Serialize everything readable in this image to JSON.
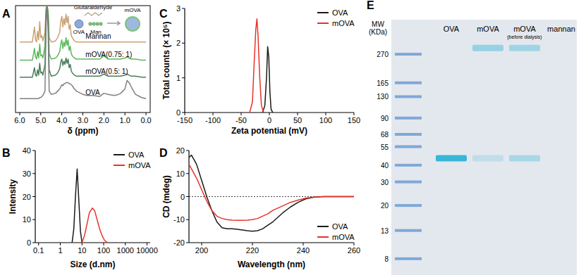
{
  "chart_data": [
    {
      "panel": "A",
      "type": "line",
      "xlabel": "δ (ppm)",
      "xlim": [
        6.2,
        -0.2
      ],
      "ylim": [
        0,
        100
      ],
      "xticks": [
        {
          "value": 6,
          "label": "6.0"
        },
        {
          "value": 5,
          "label": "5.0"
        },
        {
          "value": 4,
          "label": "4.0"
        },
        {
          "value": 3,
          "label": "3.0"
        },
        {
          "value": 2,
          "label": "2.0"
        },
        {
          "value": 1,
          "label": "1.0"
        },
        {
          "value": 0,
          "label": "0.0"
        }
      ],
      "tick_labels": "x",
      "legend": "inline",
      "inset_labels": [
        "Glutaraldehyde",
        "OVA",
        "Man",
        "mOVA"
      ],
      "x": [
        6.0,
        5.6,
        5.4,
        5.3,
        5.25,
        5.2,
        5.15,
        5.1,
        5.05,
        5.0,
        4.95,
        4.9,
        4.8,
        4.75,
        4.7,
        4.65,
        4.6,
        4.5,
        4.3,
        4.2,
        4.1,
        4.05,
        4.0,
        3.95,
        3.9,
        3.85,
        3.8,
        3.75,
        3.7,
        3.65,
        3.6,
        3.55,
        3.5,
        3.4,
        3.3,
        3.2,
        3.0,
        2.8,
        2.5,
        2.2,
        2.0,
        1.8,
        1.5,
        1.3,
        1.2,
        1.0,
        0.9,
        0.8,
        0.7,
        0.5,
        0.2,
        0.0
      ],
      "series": [
        {
          "name": "Mannan",
          "color": "#c8a274",
          "values": [
            66,
            66,
            66,
            80,
            68,
            66,
            76,
            68,
            85,
            70,
            72,
            67,
            75,
            98,
            100,
            96,
            70,
            66,
            67,
            70,
            75,
            85,
            90,
            80,
            88,
            82,
            92,
            84,
            90,
            78,
            82,
            72,
            70,
            67,
            66,
            66,
            66,
            66,
            66,
            66,
            66,
            66,
            66,
            66,
            66,
            66,
            66,
            66,
            66,
            66,
            66,
            66
          ]
        },
        {
          "name": "mOVA(0.75: 1)",
          "color": "#5cb85c",
          "values": [
            49,
            49,
            49,
            60,
            52,
            50,
            57,
            51,
            64,
            53,
            54,
            51,
            62,
            95,
            100,
            92,
            55,
            50,
            51,
            53,
            57,
            64,
            68,
            60,
            66,
            62,
            70,
            63,
            68,
            58,
            62,
            55,
            53,
            51,
            50,
            50,
            50,
            50,
            50,
            50,
            53,
            50,
            50,
            50,
            50,
            51,
            52,
            51,
            50,
            50,
            49,
            49
          ]
        },
        {
          "name": "mOVA(0.5: 1)",
          "color": "#4a7d5a",
          "values": [
            33,
            33,
            33,
            42,
            35,
            34,
            40,
            35,
            46,
            37,
            38,
            35,
            45,
            90,
            100,
            88,
            40,
            34,
            35,
            37,
            41,
            47,
            50,
            44,
            48,
            45,
            51,
            46,
            50,
            42,
            45,
            39,
            37,
            35,
            34,
            34,
            34,
            34,
            34,
            34,
            36,
            34,
            34,
            34,
            34,
            35,
            36,
            35,
            34,
            34,
            33,
            33
          ]
        },
        {
          "name": "OVA",
          "color": "#808080",
          "values": [
            13,
            13,
            13,
            13,
            13,
            13,
            13,
            13,
            14,
            14,
            15,
            16,
            20,
            80,
            100,
            75,
            20,
            17,
            18,
            20,
            22,
            24,
            26,
            25,
            27,
            27,
            28,
            28,
            28,
            27,
            27,
            26,
            25,
            22,
            20,
            19,
            17,
            16,
            16,
            15,
            18,
            17,
            16,
            17,
            18,
            22,
            30,
            28,
            24,
            17,
            14,
            13
          ]
        }
      ]
    },
    {
      "panel": "B",
      "type": "line",
      "xlabel": "Size (d.nm)",
      "ylabel": "Intensity",
      "log": "x",
      "xlim": [
        0.07,
        14000
      ],
      "ylim": [
        0,
        40
      ],
      "xticks": [
        0.1,
        1,
        10,
        100,
        1000,
        10000
      ],
      "yticks": [
        0,
        10,
        20,
        30,
        40
      ],
      "legend": "top-right",
      "series": [
        {
          "name": "OVA",
          "color": "#1a1a1a",
          "x": [
            3.5,
            4.2,
            5,
            6,
            7,
            8.5,
            10
          ],
          "values": [
            0,
            6,
            20,
            32,
            20,
            5,
            0
          ]
        },
        {
          "name": "mOVA",
          "color": "#e8322a",
          "x": [
            10,
            13,
            17,
            22,
            30,
            38,
            50,
            65,
            85,
            110,
            150
          ],
          "values": [
            0,
            3,
            8,
            13,
            15,
            14,
            10,
            6,
            3,
            1,
            0
          ]
        }
      ]
    },
    {
      "panel": "C",
      "type": "line",
      "xlabel": "Zeta potential (mV)",
      "ylabel": "Total counts (× 10⁵)",
      "xlim": [
        -150,
        150
      ],
      "ylim": [
        0,
        3
      ],
      "xticks": [
        -150,
        -100,
        -50,
        0,
        50,
        100,
        150
      ],
      "yticks": [
        0,
        1,
        2,
        3
      ],
      "legend": "top-right",
      "series": [
        {
          "name": "OVA",
          "color": "#1a1a1a",
          "x": [
            -12,
            -8,
            -5,
            -3,
            -1,
            1,
            3,
            6
          ],
          "values": [
            0,
            0.2,
            1.0,
            1.9,
            1.6,
            0.6,
            0.1,
            0
          ]
        },
        {
          "name": "mOVA",
          "color": "#e8322a",
          "x": [
            -35,
            -30,
            -27,
            -24,
            -22,
            -20,
            -17,
            -14,
            -10
          ],
          "values": [
            0,
            0.3,
            1.4,
            2.4,
            2.7,
            2.2,
            1.0,
            0.2,
            0
          ]
        }
      ]
    },
    {
      "panel": "D",
      "type": "line",
      "xlabel": "Wavelength (nm)",
      "ylabel": "CD (mdeg)",
      "xlim": [
        195,
        260
      ],
      "ylim": [
        -20,
        20
      ],
      "xticks": [
        200,
        220,
        240,
        260
      ],
      "yticks": [
        -20,
        -10,
        0,
        10,
        20
      ],
      "reference_lines": [
        0
      ],
      "legend": "bottom-right",
      "x": [
        195,
        196,
        198,
        200,
        202,
        204,
        206,
        208,
        210,
        212,
        214,
        216,
        218,
        220,
        222,
        224,
        226,
        228,
        230,
        232,
        235,
        238,
        241,
        244,
        248,
        252,
        256,
        260
      ],
      "series": [
        {
          "name": "OVA",
          "color": "#1a1a1a",
          "values": [
            17,
            18,
            14,
            7,
            0,
            -6,
            -11,
            -13.5,
            -14,
            -14,
            -14.2,
            -14.5,
            -14.8,
            -15,
            -14.8,
            -14,
            -12.5,
            -11,
            -9,
            -7,
            -4.5,
            -2.5,
            -1,
            -0.3,
            0,
            0,
            0,
            0
          ]
        },
        {
          "name": "mOVA",
          "color": "#e8322a",
          "values": [
            14,
            12,
            8,
            3,
            -2,
            -6,
            -8.5,
            -9.5,
            -10,
            -10.2,
            -10.3,
            -10.3,
            -10.2,
            -10,
            -9.5,
            -8.5,
            -7.5,
            -6,
            -5,
            -4,
            -2.5,
            -1.5,
            -0.7,
            -0.2,
            0,
            0,
            0,
            0
          ]
        }
      ]
    },
    {
      "panel": "E",
      "type": "gel",
      "ylabel": "MW (KDa)",
      "log": "y",
      "ylim": [
        6.5,
        340
      ],
      "yticks": [
        270,
        165,
        130,
        90,
        68,
        55,
        40,
        30,
        20,
        13,
        8
      ],
      "categories": [
        "OVA",
        "mOVA",
        "mOVA",
        "mannan"
      ],
      "category_notes": [
        null,
        null,
        "(before dialysis)",
        null
      ],
      "bands": [
        [
          45
        ],
        [
          300,
          45
        ],
        [
          300,
          45
        ],
        []
      ],
      "band_intensity": [
        [
          1
        ],
        [
          0.45,
          0.2
        ],
        [
          0.4,
          0.35
        ],
        []
      ],
      "color": "#38b6d8"
    }
  ]
}
